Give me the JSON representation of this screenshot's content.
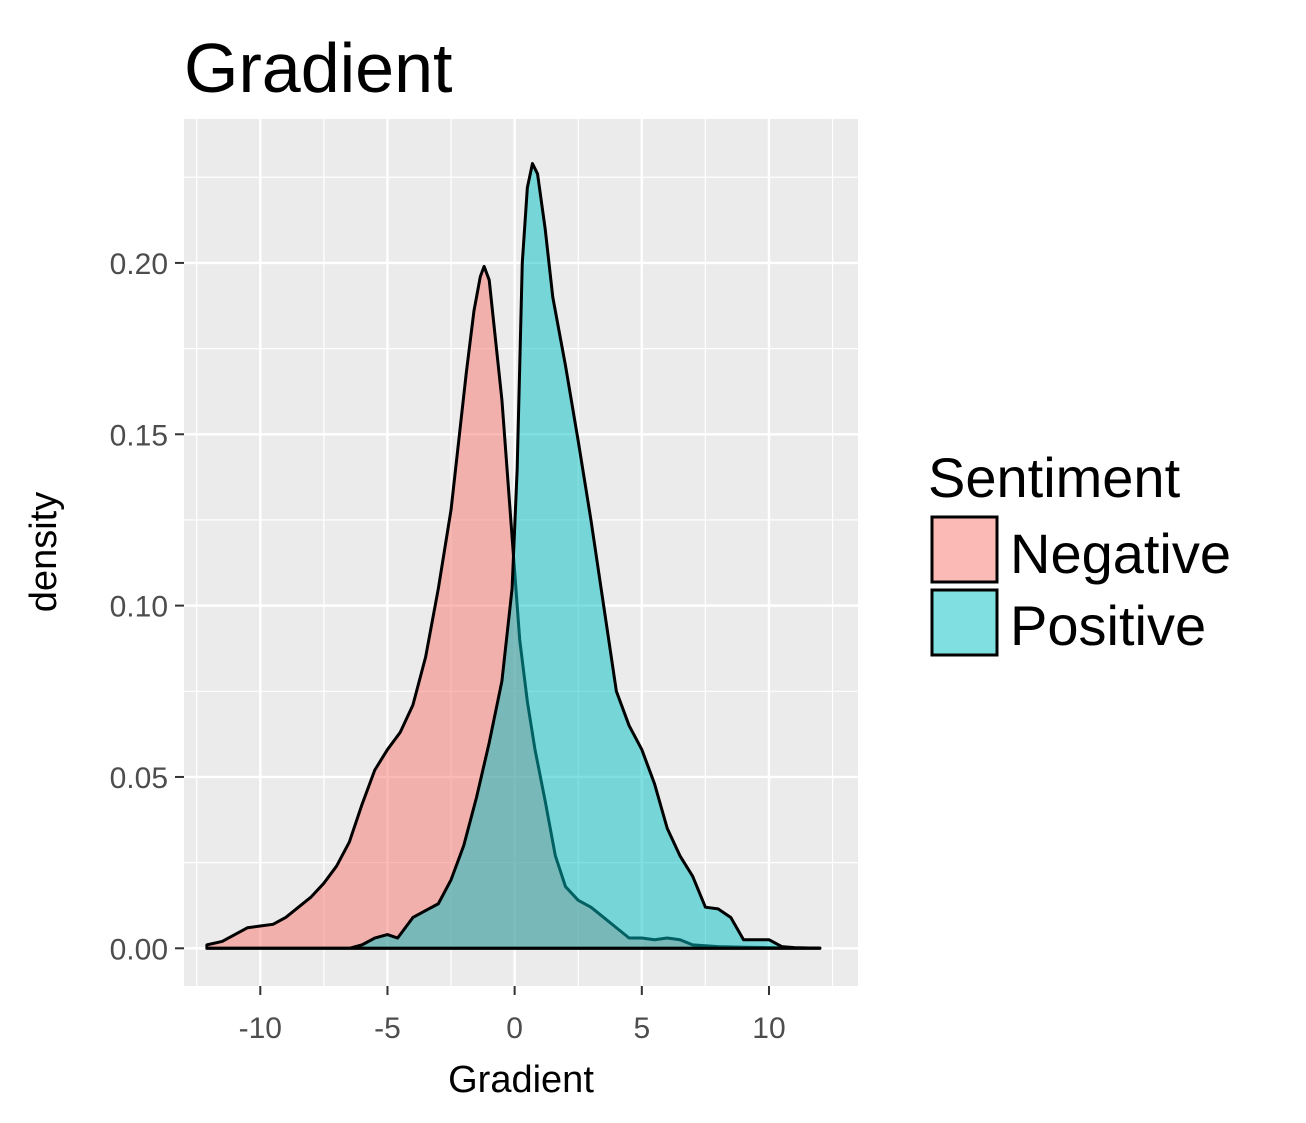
{
  "chart_data": {
    "type": "area",
    "subtype": "density",
    "title": "Gradient",
    "xlabel": "Gradient",
    "ylabel": "density",
    "xlim": [
      -13,
      13.5
    ],
    "ylim": [
      -0.011,
      0.242
    ],
    "x_ticks": [
      -10,
      -5,
      0,
      5,
      10
    ],
    "x_tick_labels": [
      "-10",
      "-5",
      "0",
      "5",
      "10"
    ],
    "y_ticks": [
      0,
      0.05,
      0.1,
      0.15,
      0.2
    ],
    "y_tick_labels": [
      "0.00",
      "0.05",
      "0.10",
      "0.15",
      "0.20"
    ],
    "grid": true,
    "panel_background": "#EBEBEB",
    "legend": {
      "title": "Sentiment",
      "position": "right",
      "entries": [
        "Negative",
        "Positive"
      ]
    },
    "series": [
      {
        "name": "Negative",
        "color": "#F8766D",
        "points": [
          [
            -12.1,
            0.001
          ],
          [
            -11.5,
            0.002
          ],
          [
            -11.0,
            0.004
          ],
          [
            -10.5,
            0.006
          ],
          [
            -10.0,
            0.0065
          ],
          [
            -9.5,
            0.007
          ],
          [
            -9.0,
            0.009
          ],
          [
            -8.5,
            0.012
          ],
          [
            -8.0,
            0.015
          ],
          [
            -7.5,
            0.019
          ],
          [
            -7.0,
            0.024
          ],
          [
            -6.5,
            0.031
          ],
          [
            -6.0,
            0.042
          ],
          [
            -5.5,
            0.052
          ],
          [
            -5.0,
            0.058
          ],
          [
            -4.5,
            0.063
          ],
          [
            -4.0,
            0.071
          ],
          [
            -3.5,
            0.085
          ],
          [
            -3.0,
            0.105
          ],
          [
            -2.5,
            0.128
          ],
          [
            -2.2,
            0.148
          ],
          [
            -1.9,
            0.168
          ],
          [
            -1.6,
            0.186
          ],
          [
            -1.35,
            0.196
          ],
          [
            -1.2,
            0.199
          ],
          [
            -1.0,
            0.195
          ],
          [
            -0.8,
            0.181
          ],
          [
            -0.5,
            0.16
          ],
          [
            -0.2,
            0.13
          ],
          [
            0.0,
            0.11
          ],
          [
            0.2,
            0.09
          ],
          [
            0.5,
            0.072
          ],
          [
            0.8,
            0.058
          ],
          [
            1.2,
            0.043
          ],
          [
            1.6,
            0.027
          ],
          [
            2.0,
            0.018
          ],
          [
            2.5,
            0.014
          ],
          [
            3.0,
            0.012
          ],
          [
            3.5,
            0.009
          ],
          [
            4.0,
            0.006
          ],
          [
            4.5,
            0.003
          ],
          [
            5.0,
            0.003
          ],
          [
            5.5,
            0.0025
          ],
          [
            6.0,
            0.003
          ],
          [
            6.5,
            0.0025
          ],
          [
            7.0,
            0.001
          ],
          [
            8.0,
            0.0005
          ],
          [
            9.0,
            0.0003
          ],
          [
            10.0,
            0.0002
          ],
          [
            11.0,
            0.0001
          ],
          [
            12.0,
            0.0001
          ]
        ]
      },
      {
        "name": "Positive",
        "color": "#00BFC4",
        "points": [
          [
            -12.1,
            0.0
          ],
          [
            -10.0,
            0.0
          ],
          [
            -8.0,
            0.0
          ],
          [
            -6.5,
            0.0
          ],
          [
            -6.0,
            0.001
          ],
          [
            -5.5,
            0.003
          ],
          [
            -5.0,
            0.004
          ],
          [
            -4.6,
            0.003
          ],
          [
            -4.3,
            0.006
          ],
          [
            -4.0,
            0.009
          ],
          [
            -3.5,
            0.011
          ],
          [
            -3.0,
            0.013
          ],
          [
            -2.5,
            0.02
          ],
          [
            -2.0,
            0.03
          ],
          [
            -1.5,
            0.044
          ],
          [
            -1.0,
            0.06
          ],
          [
            -0.5,
            0.078
          ],
          [
            -0.1,
            0.105
          ],
          [
            0.1,
            0.14
          ],
          [
            0.2,
            0.17
          ],
          [
            0.3,
            0.2
          ],
          [
            0.5,
            0.222
          ],
          [
            0.7,
            0.229
          ],
          [
            0.9,
            0.226
          ],
          [
            1.2,
            0.21
          ],
          [
            1.5,
            0.19
          ],
          [
            2.0,
            0.17
          ],
          [
            2.5,
            0.148
          ],
          [
            3.0,
            0.125
          ],
          [
            3.5,
            0.1
          ],
          [
            4.0,
            0.075
          ],
          [
            4.5,
            0.065
          ],
          [
            5.0,
            0.058
          ],
          [
            5.5,
            0.048
          ],
          [
            6.0,
            0.035
          ],
          [
            6.5,
            0.027
          ],
          [
            7.0,
            0.021
          ],
          [
            7.5,
            0.012
          ],
          [
            8.0,
            0.0115
          ],
          [
            8.5,
            0.009
          ],
          [
            9.0,
            0.0025
          ],
          [
            9.5,
            0.0025
          ],
          [
            10.0,
            0.0025
          ],
          [
            10.5,
            0.0005
          ],
          [
            11.0,
            0.0002
          ],
          [
            12.0,
            0.0
          ]
        ]
      }
    ]
  }
}
